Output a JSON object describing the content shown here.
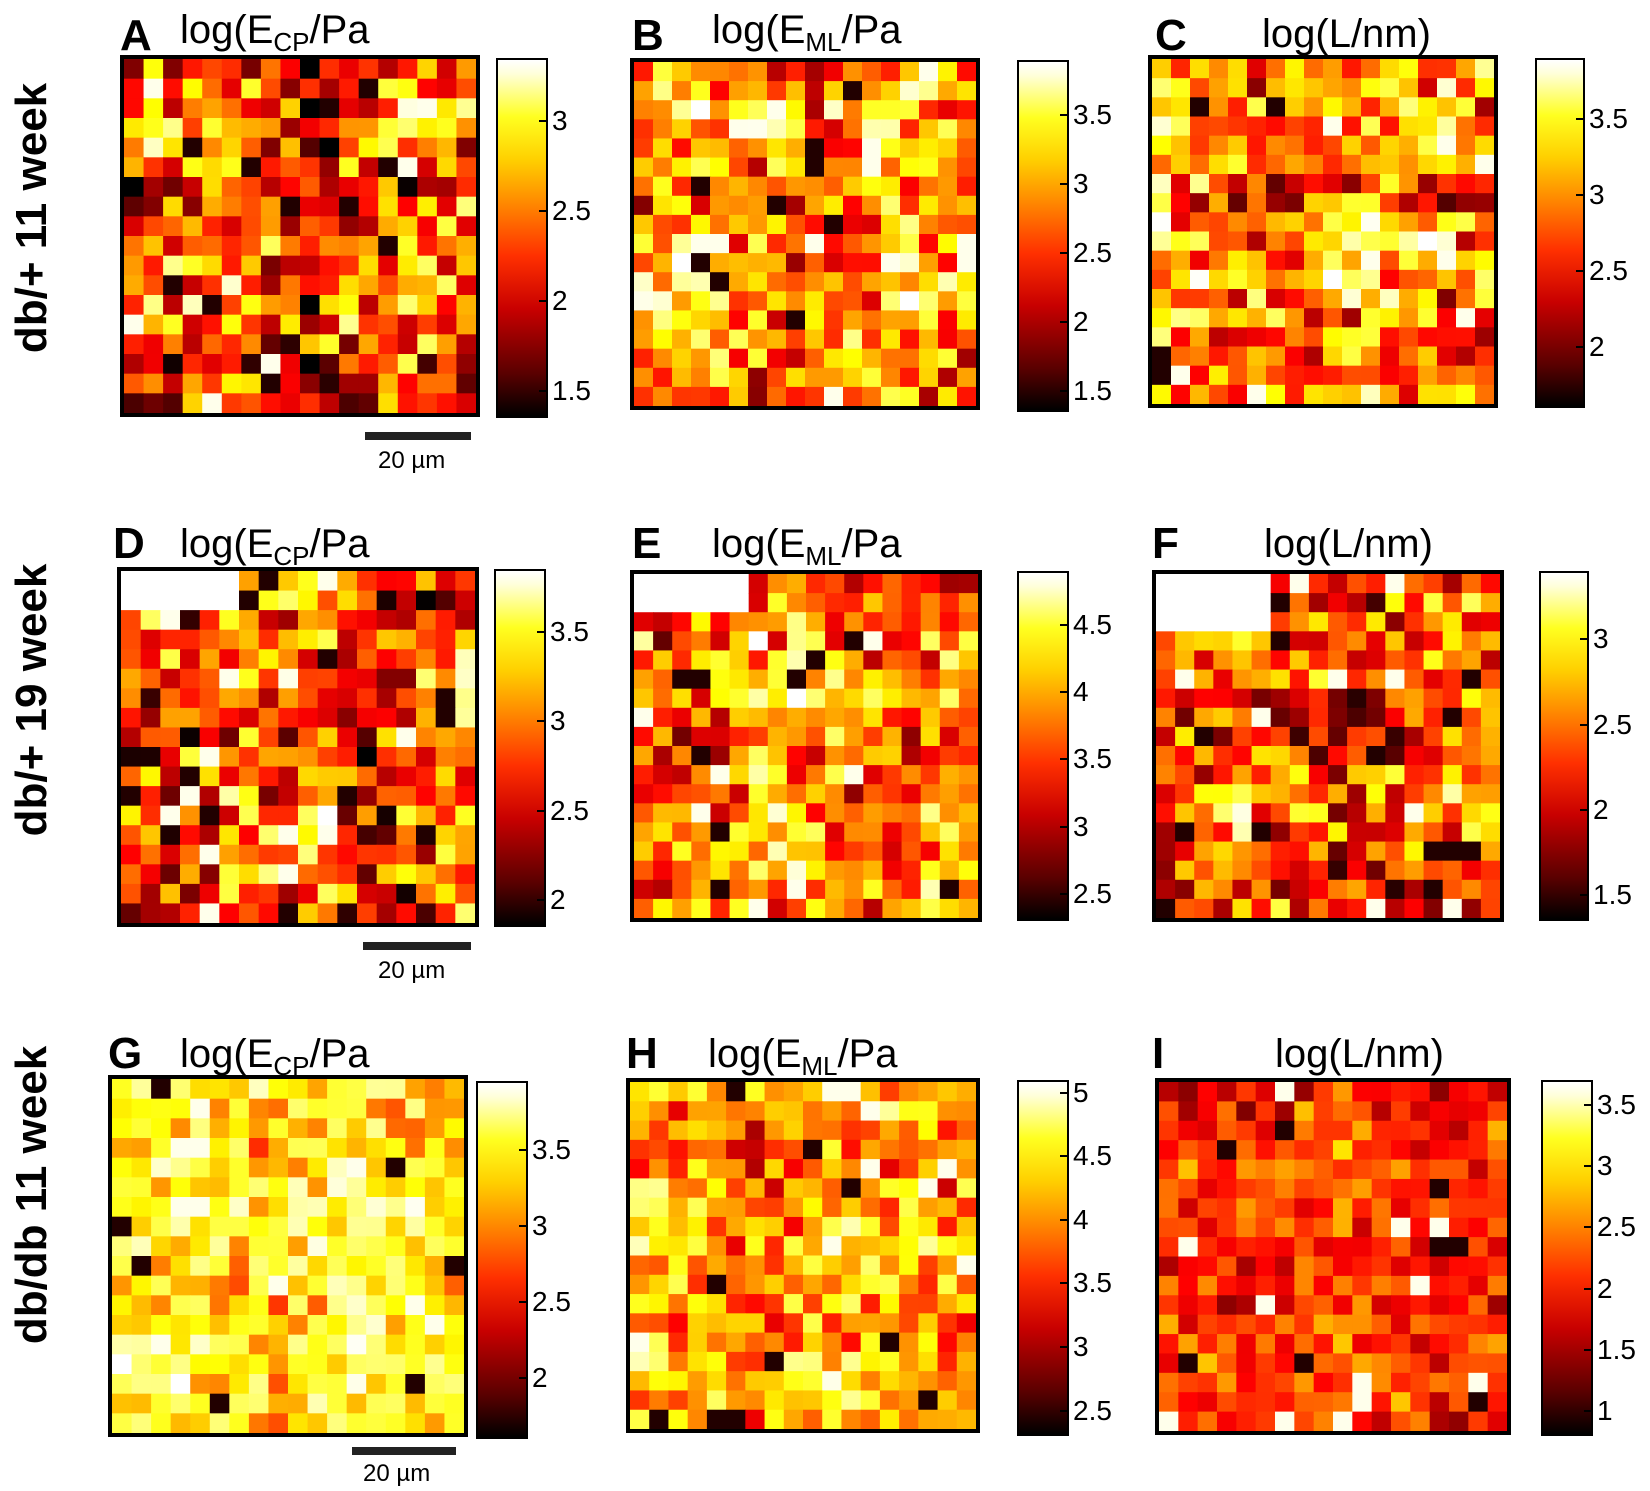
{
  "rows": [
    {
      "label": "db/+ 11 week"
    },
    {
      "label": "db/+ 19 week"
    },
    {
      "label": "db/db 11 week"
    }
  ],
  "scalebar_label": "20 µm",
  "chart_data": [
    {
      "type": "heatmap",
      "panel": "A",
      "quantity": "log(E",
      "subscript": "CP",
      "unit": "/Pa",
      "row": "db/+ 11 week",
      "colorbar_ticks": [
        "1.5",
        "2",
        "2.5",
        "3"
      ],
      "ylim": [
        1.35,
        3.35
      ],
      "grid_size": 18,
      "seed": 11,
      "pattern": "mixed",
      "mean": 2.25,
      "spread": 0.45,
      "missing_top_left": [
        0,
        0
      ]
    },
    {
      "type": "heatmap",
      "panel": "B",
      "quantity": "log(E",
      "subscript": "ML",
      "unit": "/Pa",
      "row": "db/+ 11 week",
      "colorbar_ticks": [
        "1.5",
        "2",
        "2.5",
        "3",
        "3.5"
      ],
      "ylim": [
        1.35,
        3.9
      ],
      "grid_size": 18,
      "seed": 23,
      "pattern": "mixed",
      "mean": 2.85,
      "spread": 0.45,
      "missing_top_left": [
        0,
        0
      ]
    },
    {
      "type": "heatmap",
      "panel": "C",
      "quantity": "log(L/nm)",
      "subscript": "",
      "unit": "",
      "row": "db/+ 11 week",
      "colorbar_ticks": [
        "2",
        "2.5",
        "3",
        "3.5"
      ],
      "ylim": [
        1.6,
        3.9
      ],
      "grid_size": 18,
      "seed": 37,
      "pattern": "mixed",
      "mean": 2.95,
      "spread": 0.45,
      "missing_top_left": [
        0,
        0
      ]
    },
    {
      "type": "heatmap",
      "panel": "D",
      "quantity": "log(E",
      "subscript": "CP",
      "unit": "/Pa",
      "row": "db/+ 19 week",
      "colorbar_ticks": [
        "2",
        "2.5",
        "3",
        "3.5"
      ],
      "ylim": [
        1.85,
        3.85
      ],
      "grid_size": 18,
      "seed": 41,
      "pattern": "mixed",
      "mean": 2.85,
      "spread": 0.45,
      "missing_top_left": [
        6,
        2
      ]
    },
    {
      "type": "heatmap",
      "panel": "E",
      "quantity": "log(E",
      "subscript": "ML",
      "unit": "/Pa",
      "row": "db/+ 19 week",
      "colorbar_ticks": [
        "2.5",
        "3",
        "3.5",
        "4",
        "4.5"
      ],
      "ylim": [
        2.3,
        4.9
      ],
      "grid_size": 18,
      "seed": 53,
      "pattern": "mixed",
      "mean": 3.8,
      "spread": 0.5,
      "missing_top_left": [
        6,
        2
      ]
    },
    {
      "type": "heatmap",
      "panel": "F",
      "quantity": "log(L/nm)",
      "subscript": "",
      "unit": "",
      "row": "db/+ 19 week",
      "colorbar_ticks": [
        "1.5",
        "2",
        "2.5",
        "3"
      ],
      "ylim": [
        1.35,
        3.4
      ],
      "grid_size": 18,
      "seed": 67,
      "pattern": "mixed",
      "mean": 2.35,
      "spread": 0.35,
      "missing_top_left": [
        6,
        3
      ]
    },
    {
      "type": "heatmap",
      "panel": "G",
      "quantity": "log(E",
      "subscript": "CP",
      "unit": "/Pa",
      "row": "db/db 11 week",
      "colorbar_ticks": [
        "2",
        "2.5",
        "3",
        "3.5"
      ],
      "ylim": [
        1.6,
        3.95
      ],
      "grid_size": 18,
      "seed": 71,
      "pattern": "bright",
      "mean": 3.35,
      "spread": 0.3,
      "missing_top_left": [
        0,
        0
      ]
    },
    {
      "type": "heatmap",
      "panel": "H",
      "quantity": "log(E",
      "subscript": "ML",
      "unit": "/Pa",
      "row": "db/db 11 week",
      "colorbar_ticks": [
        "2.5",
        "3",
        "3.5",
        "4",
        "4.5",
        "5"
      ],
      "ylim": [
        2.3,
        5.1
      ],
      "grid_size": 18,
      "seed": 83,
      "pattern": "mixed",
      "mean": 4.0,
      "spread": 0.42,
      "missing_top_left": [
        0,
        0
      ]
    },
    {
      "type": "heatmap",
      "panel": "I",
      "quantity": "log(L/nm)",
      "subscript": "",
      "unit": "",
      "row": "db/db 11 week",
      "colorbar_ticks": [
        "1",
        "1.5",
        "2",
        "2.5",
        "3",
        "3.5"
      ],
      "ylim": [
        0.8,
        3.7
      ],
      "grid_size": 18,
      "seed": 97,
      "pattern": "dark",
      "mean": 2.1,
      "spread": 0.3,
      "missing_top_left": [
        0,
        0
      ]
    }
  ]
}
